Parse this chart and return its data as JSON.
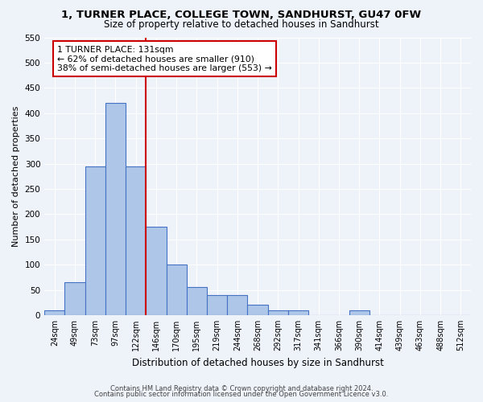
{
  "title_line1": "1, TURNER PLACE, COLLEGE TOWN, SANDHURST, GU47 0FW",
  "title_line2": "Size of property relative to detached houses in Sandhurst",
  "xlabel": "Distribution of detached houses by size in Sandhurst",
  "ylabel": "Number of detached properties",
  "categories": [
    "24sqm",
    "49sqm",
    "73sqm",
    "97sqm",
    "122sqm",
    "146sqm",
    "170sqm",
    "195sqm",
    "219sqm",
    "244sqm",
    "268sqm",
    "292sqm",
    "317sqm",
    "341sqm",
    "366sqm",
    "390sqm",
    "414sqm",
    "439sqm",
    "463sqm",
    "488sqm",
    "512sqm"
  ],
  "bar_heights": [
    10,
    65,
    295,
    420,
    295,
    175,
    100,
    55,
    40,
    40,
    20,
    10,
    10,
    0,
    0,
    10,
    0,
    0,
    0,
    0,
    0
  ],
  "bar_color": "#aec6e8",
  "bar_edge_color": "#4472c4",
  "vline_color": "#cc0000",
  "annotation_text": "1 TURNER PLACE: 131sqm\n← 62% of detached houses are smaller (910)\n38% of semi-detached houses are larger (553) →",
  "annotation_box_color": "#cc0000",
  "ylim": [
    0,
    550
  ],
  "yticks": [
    0,
    50,
    100,
    150,
    200,
    250,
    300,
    350,
    400,
    450,
    500,
    550
  ],
  "footer_line1": "Contains HM Land Registry data © Crown copyright and database right 2024.",
  "footer_line2": "Contains public sector information licensed under the Open Government Licence v3.0.",
  "bg_color": "#eef2f9",
  "grid_color": "#ffffff"
}
